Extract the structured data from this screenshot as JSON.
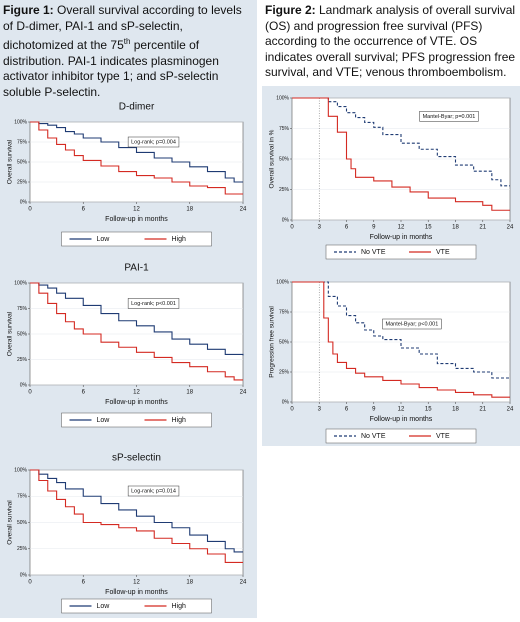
{
  "captions": [
    {
      "label": "Figure 1:",
      "text": " Overall survival according to levels of D-dimer, PAI-1 and sP-selectin, dichotomized at the 75",
      "sup": "th",
      "text2": " percentile of distribution. PAI-1 indicates plasminogen activator inhibitor type 1; and sP-selectin soluble P-selectin."
    },
    {
      "label": "Figure 2:",
      "text": " Landmark analysis of overall survival (OS) and progression free survival (PFS) according to the occurrence of VTE. OS indicates overall survival; PFS progression free survival, and VTE; venous thromboembolism."
    }
  ],
  "chart_data": [
    {
      "type": "line",
      "step": true,
      "title": "D-dimer",
      "ylabel": "Overall survival",
      "xlabel": "Follow-up in months",
      "annotation": "Log-rank; p=0.004",
      "xlim": [
        0,
        24
      ],
      "xticks": [
        0,
        6,
        12,
        18,
        24
      ],
      "ylim": [
        0,
        100
      ],
      "yticks": [
        {
          "value": 0,
          "label": "0%"
        },
        {
          "value": 25,
          "label": "25%"
        },
        {
          "value": 50,
          "label": "50%"
        },
        {
          "value": 75,
          "label": "75%"
        },
        {
          "value": 100,
          "label": "100%"
        }
      ],
      "series": [
        {
          "name": "Low",
          "color": "#1f3b73",
          "x": [
            0,
            1,
            2,
            3,
            4,
            5,
            6,
            8,
            10,
            12,
            14,
            16,
            18,
            20,
            22,
            23,
            24
          ],
          "values": [
            100,
            98,
            96,
            93,
            88,
            85,
            80,
            75,
            68,
            62,
            55,
            50,
            44,
            38,
            30,
            25,
            25
          ]
        },
        {
          "name": "High",
          "color": "#d42a22",
          "x": [
            0,
            1,
            2,
            3,
            4,
            5,
            6,
            8,
            10,
            12,
            14,
            16,
            18,
            20,
            22,
            24
          ],
          "values": [
            100,
            90,
            80,
            72,
            65,
            58,
            52,
            45,
            38,
            33,
            30,
            25,
            20,
            18,
            10,
            10
          ]
        }
      ]
    },
    {
      "type": "line",
      "step": true,
      "title": "PAI-1",
      "ylabel": "Overall survival",
      "xlabel": "Follow-up in months",
      "annotation": "Log-rank; p<0.001",
      "xlim": [
        0,
        24
      ],
      "xticks": [
        0,
        6,
        12,
        18,
        24
      ],
      "ylim": [
        0,
        100
      ],
      "yticks": [
        {
          "value": 0,
          "label": "0%"
        },
        {
          "value": 25,
          "label": "25%"
        },
        {
          "value": 50,
          "label": "50%"
        },
        {
          "value": 75,
          "label": "75%"
        },
        {
          "value": 100,
          "label": "100%"
        }
      ],
      "series": [
        {
          "name": "Low",
          "color": "#1f3b73",
          "x": [
            0,
            1,
            2,
            3,
            4,
            6,
            8,
            10,
            12,
            14,
            16,
            18,
            20,
            22,
            24
          ],
          "values": [
            100,
            98,
            95,
            90,
            85,
            78,
            70,
            63,
            58,
            52,
            45,
            40,
            35,
            30,
            29
          ]
        },
        {
          "name": "High",
          "color": "#d42a22",
          "x": [
            0,
            1,
            2,
            3,
            4,
            5,
            6,
            8,
            10,
            12,
            14,
            16,
            18,
            20,
            22,
            23,
            24
          ],
          "values": [
            100,
            90,
            80,
            70,
            62,
            55,
            50,
            42,
            37,
            32,
            27,
            22,
            18,
            13,
            8,
            5,
            5
          ]
        }
      ]
    },
    {
      "type": "line",
      "step": true,
      "title": "sP-selectin",
      "ylabel": "Overall survival",
      "xlabel": "Follow-up in months",
      "annotation": "Log-rank; p=0.014",
      "xlim": [
        0,
        24
      ],
      "xticks": [
        0,
        6,
        12,
        18,
        24
      ],
      "ylim": [
        0,
        100
      ],
      "yticks": [
        {
          "value": 0,
          "label": "0%"
        },
        {
          "value": 25,
          "label": "25%"
        },
        {
          "value": 50,
          "label": "50%"
        },
        {
          "value": 75,
          "label": "75%"
        },
        {
          "value": 100,
          "label": "100%"
        }
      ],
      "series": [
        {
          "name": "Low",
          "color": "#1f3b73",
          "x": [
            0,
            1,
            2,
            3,
            4,
            6,
            8,
            10,
            12,
            14,
            16,
            18,
            20,
            22,
            23,
            24
          ],
          "values": [
            100,
            96,
            92,
            88,
            82,
            75,
            68,
            62,
            56,
            50,
            45,
            38,
            32,
            25,
            22,
            22
          ]
        },
        {
          "name": "High",
          "color": "#d42a22",
          "x": [
            0,
            1,
            2,
            3,
            4,
            5,
            6,
            8,
            10,
            12,
            14,
            16,
            18,
            20,
            22,
            24
          ],
          "values": [
            100,
            90,
            80,
            72,
            65,
            58,
            50,
            48,
            45,
            42,
            35,
            30,
            25,
            20,
            12,
            12
          ]
        }
      ]
    },
    {
      "type": "line",
      "step": true,
      "ylabel": "Overall survival in %",
      "xlabel": "Follow-up in months",
      "annotation": "Mantel-Byar; p=0.001",
      "vline": 3,
      "xlim": [
        0,
        24
      ],
      "xticks": [
        0,
        3,
        6,
        9,
        12,
        15,
        18,
        21,
        24
      ],
      "ylim": [
        0,
        100
      ],
      "yticks": [
        {
          "value": 0,
          "label": "0%"
        },
        {
          "value": 25,
          "label": "25%"
        },
        {
          "value": 50,
          "label": "50%"
        },
        {
          "value": 75,
          "label": "75%"
        },
        {
          "value": 100,
          "label": "100%"
        }
      ],
      "series": [
        {
          "name": "No VTE",
          "color": "#1f3b73",
          "dash": true,
          "x": [
            0,
            3,
            4,
            5,
            6,
            7,
            8,
            9,
            10,
            12,
            14,
            16,
            18,
            20,
            22,
            23,
            24
          ],
          "values": [
            100,
            100,
            97,
            93,
            88,
            84,
            80,
            76,
            70,
            63,
            58,
            52,
            45,
            40,
            33,
            28,
            28
          ]
        },
        {
          "name": "VTE",
          "color": "#d42a22",
          "x": [
            0,
            3,
            4,
            5,
            6,
            6.5,
            7,
            9,
            11,
            13,
            15,
            18,
            21,
            22,
            24
          ],
          "values": [
            100,
            100,
            85,
            72,
            50,
            42,
            35,
            32,
            27,
            23,
            18,
            15,
            12,
            8,
            8
          ]
        }
      ]
    },
    {
      "type": "line",
      "step": true,
      "ylabel": "Progression free survival",
      "xlabel": "Follow-up in months",
      "annotation": "Mantel-Byar; p<0.001",
      "vline": 3,
      "xlim": [
        0,
        24
      ],
      "xticks": [
        0,
        3,
        6,
        9,
        12,
        15,
        18,
        21,
        24
      ],
      "ylim": [
        0,
        100
      ],
      "yticks": [
        {
          "value": 0,
          "label": "0%"
        },
        {
          "value": 25,
          "label": "25%"
        },
        {
          "value": 50,
          "label": "50%"
        },
        {
          "value": 75,
          "label": "75%"
        },
        {
          "value": 100,
          "label": "100%"
        }
      ],
      "series": [
        {
          "name": "No VTE",
          "color": "#1f3b73",
          "dash": true,
          "x": [
            0,
            3,
            4,
            5,
            6,
            7,
            8,
            9,
            10,
            12,
            14,
            16,
            18,
            20,
            22,
            24
          ],
          "values": [
            100,
            100,
            88,
            80,
            72,
            66,
            60,
            55,
            52,
            45,
            40,
            32,
            28,
            25,
            20,
            20
          ]
        },
        {
          "name": "VTE",
          "color": "#d42a22",
          "x": [
            0,
            3,
            3.5,
            4,
            4.5,
            5,
            6,
            7,
            8,
            10,
            12,
            14,
            16,
            18,
            20,
            22,
            24
          ],
          "values": [
            100,
            100,
            70,
            50,
            40,
            33,
            28,
            24,
            21,
            18,
            15,
            12,
            10,
            8,
            6,
            4,
            4
          ]
        }
      ]
    }
  ]
}
